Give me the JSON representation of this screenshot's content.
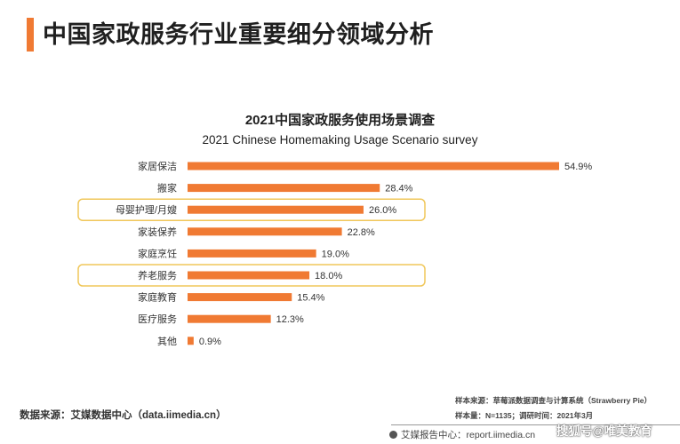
{
  "page": {
    "title": "中国家政服务行业重要细分领域分析"
  },
  "chart_data": {
    "type": "bar",
    "orientation": "horizontal",
    "title": "2021中国家政服务使用场景调查",
    "subtitle": "2021 Chinese Homemaking Usage Scenario survey",
    "categories": [
      "家居保洁",
      "搬家",
      "母婴护理/月嫂",
      "家装保养",
      "家庭烹饪",
      "养老服务",
      "家庭教育",
      "医疗服务",
      "其他"
    ],
    "values": [
      54.9,
      28.4,
      26.0,
      22.8,
      19.0,
      18.0,
      15.4,
      12.3,
      0.9
    ],
    "value_labels": [
      "54.9%",
      "28.4%",
      "26.0%",
      "22.8%",
      "19.0%",
      "18.0%",
      "15.4%",
      "12.3%",
      "0.9%"
    ],
    "highlighted": [
      "母婴护理/月嫂",
      "养老服务"
    ],
    "bar_color": "#f07a33",
    "highlight_color": "#f0c75a",
    "xlim": [
      0,
      60
    ],
    "grid": false,
    "legend": "none"
  },
  "footer": {
    "data_source": "数据来源：艾媒数据中心（data.iimedia.cn）",
    "sample_source": "样本来源：草莓派数据调查与计算系统（Strawberry Pie）",
    "sample_size": "样本量：N=1135；调研时间：2021年3月",
    "report_center": "艾媒报告中心：report.iimedia.cn",
    "watermark": "搜狐号@唯美教育"
  },
  "colors": {
    "accent": "#f07a33",
    "highlight_border": "#f0c75a"
  }
}
